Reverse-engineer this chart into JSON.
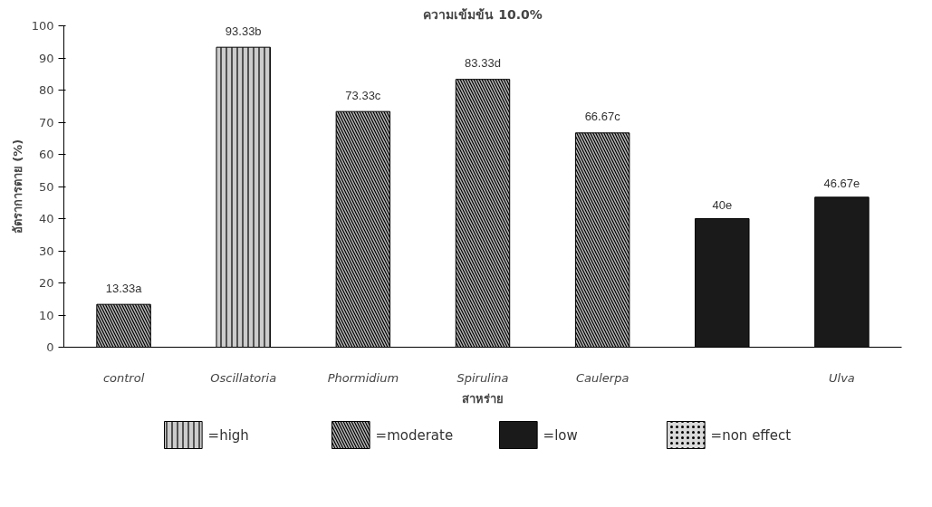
{
  "chart_data": {
    "type": "bar",
    "title": "ความเข้มข้น 10.0%",
    "xlabel": "สาหร่าย",
    "ylabel": "อัตราการตาย (%)",
    "categories": [
      "control",
      "Oscillatoria",
      "Phormidium",
      "Spirulina",
      "Caulerpa",
      null,
      "Ulva"
    ],
    "series": [
      {
        "name": "=high",
        "color": "#cccccc",
        "values": [
          null,
          93.33,
          null,
          null,
          null,
          null,
          null
        ]
      },
      {
        "name": "=moderate",
        "color": "#b3b3b3",
        "values": [
          13.33,
          null,
          73.33,
          83.33,
          66.67,
          null,
          null
        ]
      },
      {
        "name": "=low",
        "color": "#1a1a1a",
        "values": [
          null,
          null,
          null,
          null,
          null,
          40,
          46.67
        ]
      },
      {
        "name": "=non effect",
        "color": "#d9d9d9",
        "values": [
          null,
          null,
          null,
          null,
          null,
          null,
          null
        ]
      }
    ],
    "value_labels": [
      "13.33a",
      "93.33b",
      "73.33c",
      "83.33d",
      "66.67c",
      "40e",
      "46.67e"
    ],
    "ylim": [
      0,
      100
    ],
    "yticks": [
      0,
      10,
      20,
      30,
      40,
      50,
      60,
      70,
      80,
      90,
      100
    ],
    "grid": false,
    "legend": "bottom"
  }
}
